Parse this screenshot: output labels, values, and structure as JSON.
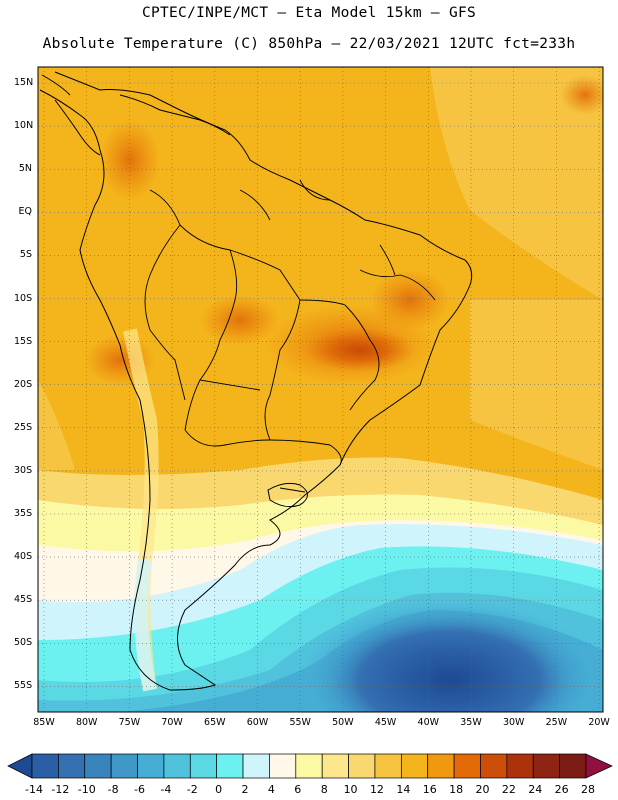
{
  "header": {
    "line1": "CPTEC/INPE/MCT –  Eta Model 15km – GFS",
    "line2": "Absolute Temperature (C) 850hPa – 22/03/2021 12UTC fct=233h"
  },
  "map": {
    "region": "South America",
    "lat_labels": [
      "15N",
      "10N",
      "5N",
      "EQ",
      "5S",
      "10S",
      "15S",
      "20S",
      "25S",
      "30S",
      "35S",
      "40S",
      "45S",
      "50S",
      "55S"
    ],
    "lon_labels": [
      "85W",
      "80W",
      "75W",
      "70W",
      "65W",
      "60W",
      "55W",
      "50W",
      "45W",
      "40W",
      "35W",
      "30W",
      "25W",
      "20W"
    ]
  },
  "colorbar": {
    "tick_labels": [
      "-14",
      "-12",
      "-10",
      "-8",
      "-6",
      "-4",
      "-2",
      "0",
      "2",
      "4",
      "6",
      "8",
      "10",
      "12",
      "14",
      "16",
      "18",
      "20",
      "22",
      "24",
      "26",
      "28"
    ],
    "colors": [
      "#1e4a92",
      "#2a5ea6",
      "#3470b2",
      "#3a84be",
      "#3f98c8",
      "#46aed4",
      "#50c2dc",
      "#5ad8e4",
      "#6cf0f0",
      "#d0f4fc",
      "#fff8e8",
      "#fcf9a4",
      "#fce78c",
      "#fad870",
      "#f6c440",
      "#f4b41c",
      "#f09810",
      "#e26a06",
      "#cc4e08",
      "#ac320c",
      "#8e2414",
      "#7a1c14",
      "#901040"
    ],
    "units": "C"
  }
}
